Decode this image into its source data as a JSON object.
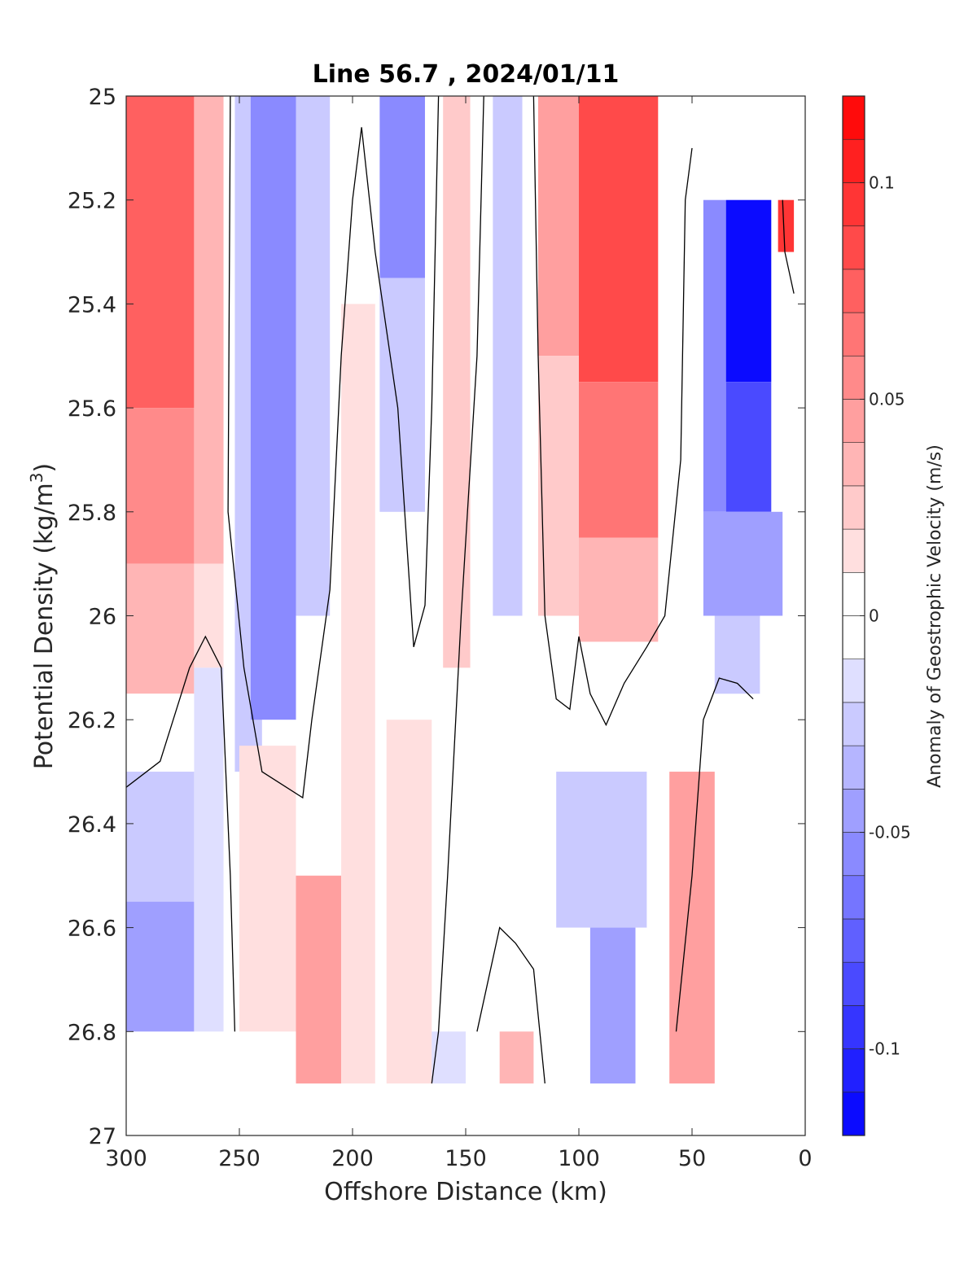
{
  "chart_data": {
    "type": "heatmap",
    "title": "Line 56.7 , 2024/01/11",
    "xlabel": "Offshore Distance (km)",
    "ylabel": {
      "text": "Potential Density (kg/m",
      "sup": "3",
      "close": ")"
    },
    "xlim": [
      300,
      0
    ],
    "ylim": [
      25,
      27
    ],
    "x_reversed": true,
    "y_reversed": true,
    "xticks": [
      300,
      250,
      200,
      150,
      100,
      50,
      0
    ],
    "xtick_labels": [
      "300",
      "250",
      "200",
      "150",
      "100",
      "50",
      "0"
    ],
    "yticks": [
      25,
      25.2,
      25.4,
      25.6,
      25.8,
      26,
      26.2,
      26.4,
      26.6,
      26.8,
      27
    ],
    "ytick_labels": [
      "25",
      "25.2",
      "25.4",
      "25.6",
      "25.8",
      "26",
      "26.2",
      "26.4",
      "26.6",
      "26.8",
      "27"
    ],
    "colorbar": {
      "label": "Anomaly of Geostrophic Velocity (m/s)",
      "range": [
        -0.12,
        0.12
      ],
      "levels": 24,
      "ticks": [
        -0.1,
        -0.05,
        0,
        0.05,
        0.1
      ],
      "tick_labels": [
        "-0.1",
        "-0.05",
        "0",
        "0.05",
        "0.1"
      ]
    },
    "cells": [
      {
        "x": [
          300,
          270
        ],
        "y": [
          25.0,
          25.6
        ],
        "v": 0.075
      },
      {
        "x": [
          300,
          270
        ],
        "y": [
          25.6,
          25.9
        ],
        "v": 0.055
      },
      {
        "x": [
          300,
          270
        ],
        "y": [
          25.9,
          26.15
        ],
        "v": 0.03
      },
      {
        "x": [
          300,
          270
        ],
        "y": [
          26.15,
          26.3
        ],
        "v": 0.005
      },
      {
        "x": [
          300,
          270
        ],
        "y": [
          26.3,
          26.55
        ],
        "v": -0.02
      },
      {
        "x": [
          300,
          270
        ],
        "y": [
          26.55,
          26.8
        ],
        "v": -0.045
      },
      {
        "x": [
          270,
          257
        ],
        "y": [
          25.0,
          25.9
        ],
        "v": 0.03
      },
      {
        "x": [
          270,
          257
        ],
        "y": [
          25.9,
          26.1
        ],
        "v": 0.01
      },
      {
        "x": [
          270,
          257
        ],
        "y": [
          26.1,
          26.8
        ],
        "v": -0.015
      },
      {
        "x": [
          252,
          240
        ],
        "y": [
          25.0,
          26.3
        ],
        "v": -0.02
      },
      {
        "x": [
          245,
          225
        ],
        "y": [
          25.0,
          26.2
        ],
        "v": -0.05
      },
      {
        "x": [
          225,
          210
        ],
        "y": [
          25.0,
          26.0
        ],
        "v": -0.03
      },
      {
        "x": [
          250,
          225
        ],
        "y": [
          26.25,
          26.8
        ],
        "v": 0.02
      },
      {
        "x": [
          225,
          205
        ],
        "y": [
          26.5,
          26.9
        ],
        "v": 0.04
      },
      {
        "x": [
          205,
          190
        ],
        "y": [
          25.4,
          26.9
        ],
        "v": 0.015
      },
      {
        "x": [
          188,
          168
        ],
        "y": [
          25.0,
          25.35
        ],
        "v": -0.05
      },
      {
        "x": [
          188,
          168
        ],
        "y": [
          25.35,
          25.8
        ],
        "v": -0.02
      },
      {
        "x": [
          185,
          165
        ],
        "y": [
          26.2,
          26.9
        ],
        "v": 0.02
      },
      {
        "x": [
          160,
          148
        ],
        "y": [
          25.0,
          26.1
        ],
        "v": 0.025
      },
      {
        "x": [
          165,
          150
        ],
        "y": [
          26.8,
          26.9
        ],
        "v": -0.015
      },
      {
        "x": [
          138,
          125
        ],
        "y": [
          25.0,
          26.0
        ],
        "v": -0.025
      },
      {
        "x": [
          135,
          120
        ],
        "y": [
          26.8,
          26.9
        ],
        "v": 0.03
      },
      {
        "x": [
          118,
          100
        ],
        "y": [
          25.0,
          25.5
        ],
        "v": 0.05
      },
      {
        "x": [
          118,
          100
        ],
        "y": [
          25.5,
          26.0
        ],
        "v": 0.025
      },
      {
        "x": [
          100,
          65
        ],
        "y": [
          25.0,
          25.55
        ],
        "v": 0.085
      },
      {
        "x": [
          100,
          65
        ],
        "y": [
          25.55,
          25.85
        ],
        "v": 0.06
      },
      {
        "x": [
          100,
          65
        ],
        "y": [
          25.85,
          26.05
        ],
        "v": 0.035
      },
      {
        "x": [
          110,
          70
        ],
        "y": [
          26.3,
          26.6
        ],
        "v": -0.02
      },
      {
        "x": [
          95,
          75
        ],
        "y": [
          26.6,
          26.9
        ],
        "v": -0.045
      },
      {
        "x": [
          60,
          40
        ],
        "y": [
          26.3,
          26.9
        ],
        "v": 0.04
      },
      {
        "x": [
          45,
          35
        ],
        "y": [
          25.2,
          25.8
        ],
        "v": -0.06
      },
      {
        "x": [
          35,
          15
        ],
        "y": [
          25.2,
          25.55
        ],
        "v": -0.115
      },
      {
        "x": [
          35,
          15
        ],
        "y": [
          25.55,
          25.8
        ],
        "v": -0.08
      },
      {
        "x": [
          45,
          10
        ],
        "y": [
          25.8,
          26.0
        ],
        "v": -0.045
      },
      {
        "x": [
          40,
          20
        ],
        "y": [
          26.0,
          26.15
        ],
        "v": -0.025
      },
      {
        "x": [
          12,
          5
        ],
        "y": [
          25.2,
          25.3
        ],
        "v": 0.09
      }
    ],
    "zero_contours": [
      [
        [
          254,
          25.0
        ],
        [
          255,
          25.8
        ],
        [
          248,
          26.1
        ],
        [
          240,
          26.3
        ],
        [
          222,
          26.35
        ],
        [
          218,
          26.2
        ],
        [
          210,
          25.95
        ],
        [
          205,
          25.5
        ],
        [
          200,
          25.2
        ],
        [
          196,
          25.06
        ],
        [
          190,
          25.3
        ],
        [
          180,
          25.6
        ],
        [
          173,
          26.06
        ],
        [
          168,
          25.98
        ],
        [
          165,
          25.6
        ],
        [
          162,
          25.0
        ]
      ],
      [
        [
          300,
          26.33
        ],
        [
          285,
          26.28
        ],
        [
          272,
          26.1
        ],
        [
          265,
          26.04
        ],
        [
          258,
          26.1
        ],
        [
          254,
          26.5
        ],
        [
          252,
          26.8
        ]
      ],
      [
        [
          142,
          25.0
        ],
        [
          145,
          25.5
        ],
        [
          152,
          26.0
        ],
        [
          158,
          26.5
        ],
        [
          162,
          26.8
        ],
        [
          165,
          26.9
        ]
      ],
      [
        [
          145,
          26.8
        ],
        [
          135,
          26.6
        ],
        [
          128,
          26.63
        ],
        [
          120,
          26.68
        ],
        [
          115,
          26.9
        ]
      ],
      [
        [
          120,
          25.0
        ],
        [
          118,
          25.5
        ],
        [
          115,
          26.0
        ],
        [
          110,
          26.16
        ],
        [
          104,
          26.18
        ],
        [
          100,
          26.04
        ],
        [
          95,
          26.15
        ],
        [
          88,
          26.21
        ],
        [
          80,
          26.13
        ],
        [
          70,
          26.06
        ],
        [
          62,
          26.0
        ],
        [
          55,
          25.7
        ],
        [
          53,
          25.2
        ],
        [
          50,
          25.1
        ]
      ],
      [
        [
          57,
          26.8
        ],
        [
          50,
          26.5
        ],
        [
          45,
          26.2
        ],
        [
          38,
          26.12
        ],
        [
          30,
          26.13
        ],
        [
          23,
          26.16
        ]
      ],
      [
        [
          10,
          25.2
        ],
        [
          9,
          25.3
        ],
        [
          5,
          25.38
        ]
      ]
    ]
  }
}
